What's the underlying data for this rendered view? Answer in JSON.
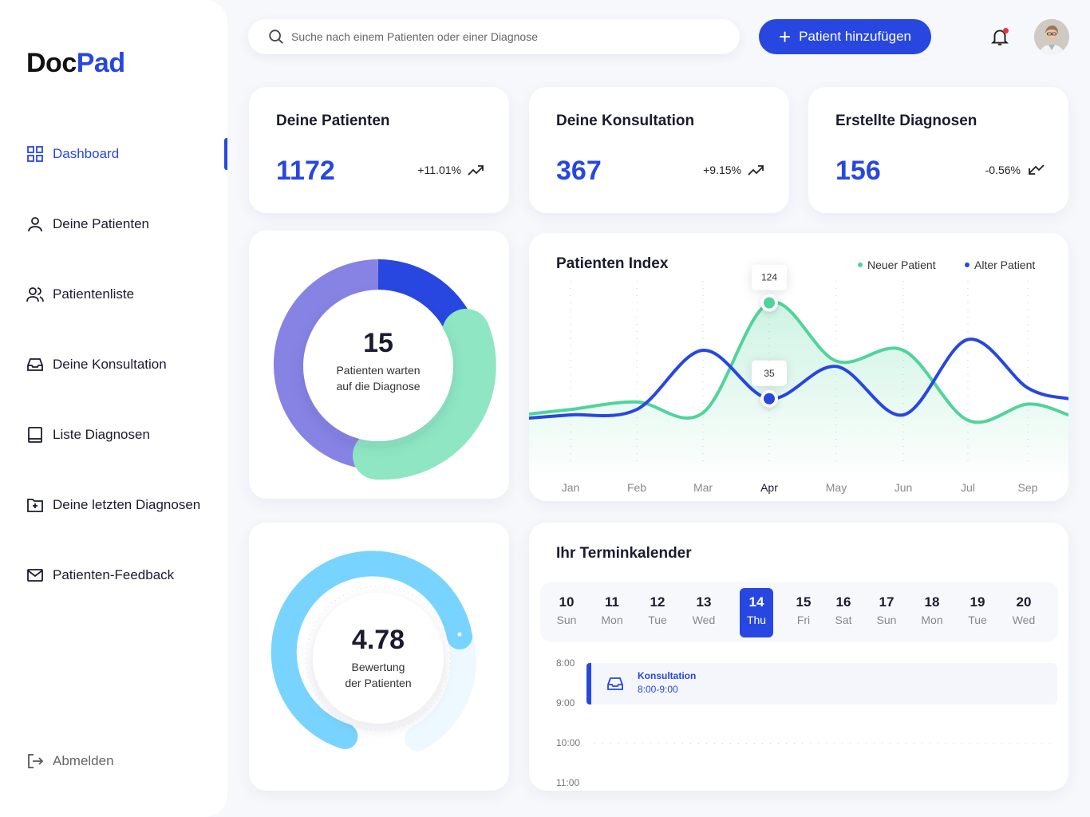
{
  "brand": {
    "part1": "Doc",
    "part2": "Pad"
  },
  "nav": [
    {
      "label": "Dashboard",
      "icon": "grid-icon"
    },
    {
      "label": "Deine Patienten",
      "icon": "user-icon"
    },
    {
      "label": "Patientenliste",
      "icon": "users-icon"
    },
    {
      "label": "Deine Konsultation",
      "icon": "inbox-icon"
    },
    {
      "label": "Liste Diagnosen",
      "icon": "book-icon"
    },
    {
      "label": "Deine letzten Diagnosen",
      "icon": "folder-plus-icon"
    },
    {
      "label": "Patienten-Feedback",
      "icon": "mail-icon"
    }
  ],
  "logout": "Abmelden",
  "search": {
    "placeholder": "Suche nach einem Patienten oder einer Diagnose"
  },
  "add_button": "Patient hinzufügen",
  "stats": [
    {
      "title": "Deine Patienten",
      "value": "1172",
      "change": "+11.01%",
      "trend": "up"
    },
    {
      "title": "Deine Konsultation",
      "value": "367",
      "change": "+9.15%",
      "trend": "up"
    },
    {
      "title": "Erstellte Diagnosen",
      "value": "156",
      "change": "-0.56%",
      "trend": "down"
    }
  ],
  "waiting": {
    "value": "15",
    "label_line1": "Patienten warten",
    "label_line2": "auf die Diagnose"
  },
  "rating": {
    "value": "4.78",
    "label_line1": "Bewertung",
    "label_line2": "der Patienten"
  },
  "colors": {
    "accent": "#2747e0",
    "green": "#8ee7c2",
    "purple": "#8683e4",
    "light_blue": "#79d3ff",
    "alert": "#f0303a"
  },
  "chart_data": {
    "type": "line",
    "title": "Patienten Index",
    "categories": [
      "Jan",
      "Feb",
      "Mar",
      "Apr",
      "May",
      "Jun",
      "Jul",
      "Sep"
    ],
    "active_category": "Apr",
    "series": [
      {
        "name": "Neuer Patient",
        "color": "#50d49b",
        "values": [
          25,
          32,
          22,
          124,
          70,
          80,
          15,
          30
        ]
      },
      {
        "name": "Alter Patient",
        "color": "#2747e0",
        "values": [
          20,
          25,
          80,
          35,
          65,
          20,
          90,
          45
        ]
      }
    ],
    "data_labels": [
      {
        "series": "Neuer Patient",
        "category": "Apr",
        "value": "124"
      },
      {
        "series": "Alter Patient",
        "category": "Apr",
        "value": "35"
      }
    ],
    "grid": "vertical-dotted"
  },
  "calendar": {
    "title": "Ihr Terminkalender",
    "days": [
      {
        "n": "10",
        "w": "Sun"
      },
      {
        "n": "11",
        "w": "Mon"
      },
      {
        "n": "12",
        "w": "Tue"
      },
      {
        "n": "13",
        "w": "Wed"
      },
      {
        "n": "14",
        "w": "Thu"
      },
      {
        "n": "15",
        "w": "Fri"
      },
      {
        "n": "16",
        "w": "Sat"
      },
      {
        "n": "17",
        "w": "Sun"
      },
      {
        "n": "18",
        "w": "Mon"
      },
      {
        "n": "19",
        "w": "Tue"
      },
      {
        "n": "20",
        "w": "Wed"
      }
    ],
    "selected_day": "14",
    "times": [
      "8:00",
      "9:00",
      "10:00",
      "11:00"
    ],
    "event": {
      "title": "Konsultation",
      "time": "8:00-9:00"
    }
  }
}
